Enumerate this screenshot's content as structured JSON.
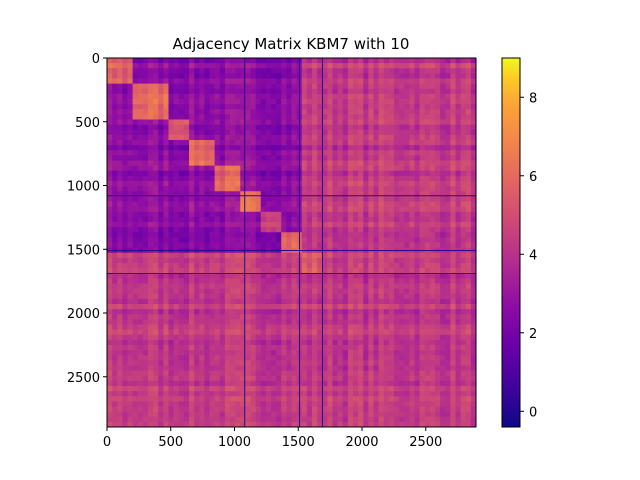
{
  "chart_data": {
    "type": "heatmap",
    "title": "Adjacency Matrix KBM7 with 10",
    "xlabel": "",
    "ylabel": "",
    "matrix_size": 2894,
    "xlim": [
      0,
      2894
    ],
    "ylim": [
      2894,
      0
    ],
    "x_ticks": [
      0,
      500,
      1000,
      1500,
      2000,
      2500
    ],
    "y_ticks": [
      0,
      500,
      1000,
      1500,
      2000,
      2500
    ],
    "colormap": "plasma",
    "colorbar": {
      "range": [
        -0.4,
        9.0
      ],
      "ticks": [
        0,
        2,
        4,
        6,
        8
      ]
    },
    "blocks": [
      {
        "start": 0,
        "end": 220,
        "value": 5.6
      },
      {
        "start": 220,
        "end": 470,
        "value": 5.8
      },
      {
        "start": 470,
        "end": 660,
        "value": 5.6
      },
      {
        "start": 660,
        "end": 860,
        "value": 5.9
      },
      {
        "start": 860,
        "end": 1040,
        "value": 5.7
      },
      {
        "start": 1040,
        "end": 1220,
        "value": 5.9
      },
      {
        "start": 1220,
        "end": 1360,
        "value": 5.0
      },
      {
        "start": 1360,
        "end": 1520,
        "value": 6.1
      },
      {
        "start": 1520,
        "end": 1700,
        "value": 5.2
      }
    ],
    "grid_lines": [
      1080,
      1510,
      1690
    ],
    "background_values": {
      "upper_offdiagonal": 2.6,
      "lower_region": 4.3
    },
    "grid": false
  }
}
